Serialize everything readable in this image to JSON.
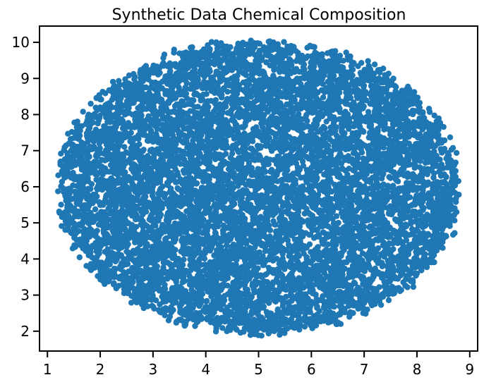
{
  "chart_data": {
    "type": "scatter",
    "title": "Synthetic Data Chemical Composition",
    "xlabel": "",
    "ylabel": "",
    "xlim": [
      0.85,
      9.15
    ],
    "ylim": [
      1.45,
      10.45
    ],
    "xticks": [
      "1",
      "2",
      "3",
      "4",
      "5",
      "6",
      "7",
      "8",
      "9"
    ],
    "yticks": [
      "2",
      "3",
      "4",
      "5",
      "6",
      "7",
      "8",
      "9",
      "10"
    ],
    "grid": false,
    "legend": "none",
    "marker_color": "#1f77b4",
    "point_cloud": {
      "description_of_extent": "dense roughly elliptical cloud",
      "center": [
        5.0,
        6.0
      ],
      "x_range": [
        1.2,
        8.8
      ],
      "y_range": [
        1.85,
        10.05
      ],
      "approx_point_count": 9000
    },
    "sample_points": [
      {
        "x": 1.25,
        "y": 6.7
      },
      {
        "x": 1.3,
        "y": 5.2
      },
      {
        "x": 1.6,
        "y": 7.1
      },
      {
        "x": 2.0,
        "y": 8.2
      },
      {
        "x": 2.1,
        "y": 3.6
      },
      {
        "x": 2.5,
        "y": 4.6
      },
      {
        "x": 3.0,
        "y": 9.3
      },
      {
        "x": 3.4,
        "y": 9.8
      },
      {
        "x": 3.6,
        "y": 2.15
      },
      {
        "x": 4.2,
        "y": 10.0
      },
      {
        "x": 4.4,
        "y": 2.5
      },
      {
        "x": 5.0,
        "y": 6.0
      },
      {
        "x": 5.4,
        "y": 1.9
      },
      {
        "x": 5.6,
        "y": 9.7
      },
      {
        "x": 6.0,
        "y": 2.3
      },
      {
        "x": 6.6,
        "y": 9.3
      },
      {
        "x": 7.0,
        "y": 2.6
      },
      {
        "x": 7.6,
        "y": 8.6
      },
      {
        "x": 8.0,
        "y": 3.6
      },
      {
        "x": 8.4,
        "y": 7.2
      },
      {
        "x": 8.75,
        "y": 5.3
      },
      {
        "x": 8.7,
        "y": 6.6
      },
      {
        "x": 8.3,
        "y": 4.2
      }
    ]
  }
}
